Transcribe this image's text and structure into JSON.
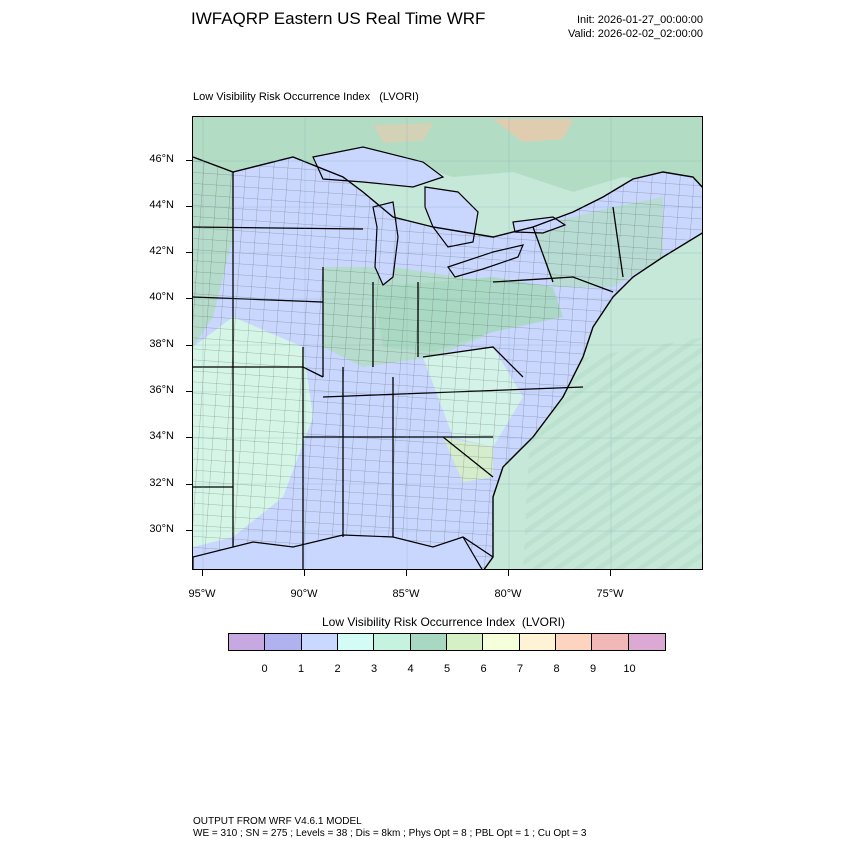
{
  "header": {
    "title": "IWFAQRP Eastern US Real Time WRF",
    "init": "Init: 2026-01-27_00:00:00",
    "valid": "Valid: 2026-02-02_02:00:00"
  },
  "map": {
    "field_label": "Low Visibility Risk Occurrence Index   (LVORI)",
    "lat_labels": [
      "46°N",
      "44°N",
      "42°N",
      "40°N",
      "38°N",
      "36°N",
      "34°N",
      "32°N",
      "30°N"
    ],
    "lon_labels": [
      "95°W",
      "90°W",
      "85°W",
      "80°W",
      "75°W"
    ],
    "colors": {
      "land_low": "#c9d7ff",
      "land_mid": "#d5f6e6",
      "land_high": "#b2ddc4",
      "ocean": "#c6e8d8",
      "ocean_deep": "#b4ddc8",
      "warm": "#f3c6a8",
      "state_line": "#000000",
      "county_line": "#333333"
    }
  },
  "colorbar": {
    "title": "Low Visibility Risk Occurrence Index  (LVORI)",
    "ticks": [
      "0",
      "1",
      "2",
      "3",
      "4",
      "5",
      "6",
      "7",
      "8",
      "9",
      "10"
    ],
    "colors": [
      "#c8a8e0",
      "#afb2ee",
      "#c8d8ff",
      "#d3fcf7",
      "#c6f2e0",
      "#a9d8c2",
      "#d6f0c6",
      "#f6ffdc",
      "#fff3d6",
      "#fcd4c0",
      "#f2b8b8",
      "#dca8d4"
    ]
  },
  "footer": {
    "line1": "OUTPUT FROM WRF V4.6.1 MODEL",
    "line2": "WE = 310 ; SN = 275 ; Levels = 38 ; Dis = 8km ; Phys Opt = 8 ; PBL Opt = 1 ; Cu Opt = 3"
  }
}
